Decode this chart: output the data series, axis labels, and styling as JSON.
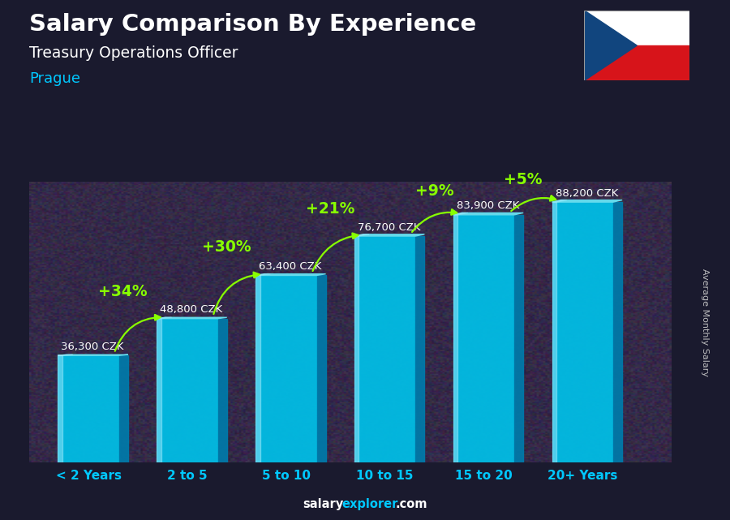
{
  "title": "Salary Comparison By Experience",
  "subtitle": "Treasury Operations Officer",
  "city": "Prague",
  "ylabel": "Average Monthly Salary",
  "categories": [
    "< 2 Years",
    "2 to 5",
    "5 to 10",
    "10 to 15",
    "15 to 20",
    "20+ Years"
  ],
  "values": [
    36300,
    48800,
    63400,
    76700,
    83900,
    88200
  ],
  "value_labels": [
    "36,300 CZK",
    "48,800 CZK",
    "63,400 CZK",
    "76,700 CZK",
    "83,900 CZK",
    "88,200 CZK"
  ],
  "pct_labels": [
    "+34%",
    "+30%",
    "+21%",
    "+9%",
    "+5%"
  ],
  "bar_color_main": "#00c0e8",
  "bar_color_dark": "#007aaa",
  "bar_color_top": "#66ddee",
  "bar_color_highlight": "#aaeeff",
  "title_color": "#ffffff",
  "subtitle_color": "#ffffff",
  "city_color": "#00c8ff",
  "value_label_color": "#ffffff",
  "pct_color": "#88ff00",
  "arrow_color": "#88ff00",
  "bg_color": "#1a1a2e",
  "footer_salary_color": "#ffffff",
  "footer_explorer_color": "#00c8ff",
  "footer_dot_com_color": "#ffffff",
  "ylabel_color": "#cccccc",
  "xticklabel_color": "#00c8ff"
}
